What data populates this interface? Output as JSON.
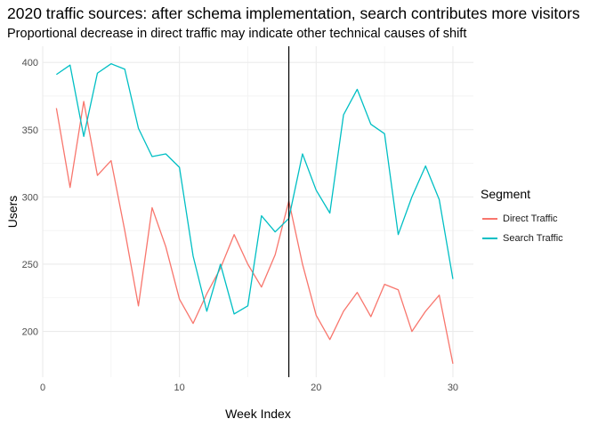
{
  "chart_data": {
    "type": "line",
    "title": "2020 traffic sources: after schema implementation, search contributes more visitors",
    "subtitle": "Proportional decrease in direct traffic may indicate other technical causes of shift",
    "xlabel": "Week Index",
    "ylabel": "Users",
    "xlim": [
      0,
      31.5
    ],
    "ylim": [
      166,
      412
    ],
    "x_ticks": [
      0,
      10,
      20,
      30
    ],
    "y_ticks": [
      200,
      250,
      300,
      350,
      400
    ],
    "grid": true,
    "legend_title": "Segment",
    "legend_position": "right",
    "vline": 18,
    "x": [
      1,
      2,
      3,
      4,
      5,
      6,
      7,
      8,
      9,
      10,
      11,
      12,
      13,
      14,
      15,
      16,
      17,
      18,
      19,
      20,
      21,
      22,
      23,
      24,
      25,
      26,
      27,
      28,
      29,
      30
    ],
    "series": [
      {
        "name": "Direct Traffic",
        "color": "#F8766D",
        "values": [
          366,
          307,
          371,
          316,
          327,
          275,
          219,
          292,
          263,
          224,
          206,
          228,
          247,
          272,
          250,
          233,
          257,
          297,
          250,
          212,
          194,
          215,
          229,
          211,
          235,
          231,
          200,
          215,
          227,
          176
        ]
      },
      {
        "name": "Search Traffic",
        "color": "#00BFC4",
        "values": [
          391,
          398,
          345,
          392,
          399,
          395,
          351,
          330,
          332,
          322,
          256,
          215,
          250,
          213,
          219,
          286,
          274,
          284,
          332,
          305,
          288,
          361,
          380,
          354,
          347,
          272,
          300,
          323,
          298,
          239
        ]
      }
    ]
  }
}
